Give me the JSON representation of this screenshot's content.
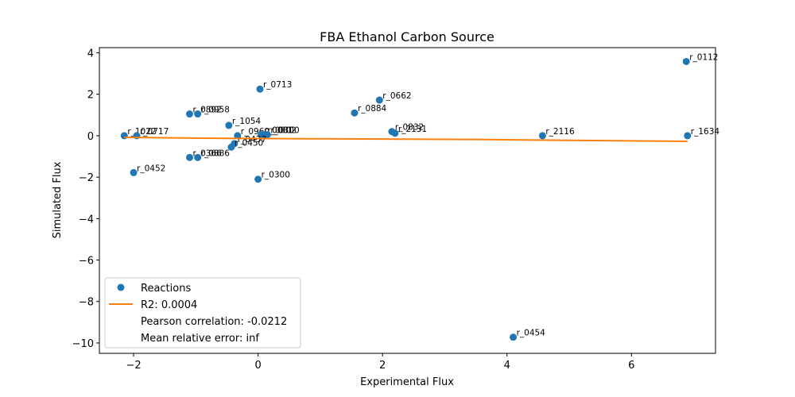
{
  "chart_data": {
    "type": "scatter",
    "title": "FBA Ethanol Carbon Source",
    "xlabel": "Experimental Flux",
    "ylabel": "Simulated Flux",
    "xlim": [
      -2.55,
      7.35
    ],
    "ylim": [
      -10.5,
      4.25
    ],
    "xticks": [
      -2,
      0,
      2,
      4,
      6
    ],
    "yticks": [
      -10,
      -8,
      -6,
      -4,
      -2,
      0,
      2,
      4
    ],
    "grid": false,
    "legend_position": "lower left",
    "colors": {
      "points": "#1f77b4",
      "fit_line": "#ff7f0e"
    },
    "series": [
      {
        "name": "Reactions",
        "points": [
          {
            "x": 6.88,
            "y": 3.58,
            "label": "r_0112"
          },
          {
            "x": 0.03,
            "y": 2.25,
            "label": "r_0713"
          },
          {
            "x": 1.95,
            "y": 1.72,
            "label": "r_0662"
          },
          {
            "x": 1.55,
            "y": 1.1,
            "label": "r_0884"
          },
          {
            "x": -1.1,
            "y": 1.05,
            "label": "r_0892"
          },
          {
            "x": -0.97,
            "y": 1.05,
            "label": "r_0958"
          },
          {
            "x": -0.47,
            "y": 0.5,
            "label": "r_1054"
          },
          {
            "x": -2.15,
            "y": 0.0,
            "label": "r_1022"
          },
          {
            "x": -1.95,
            "y": 0.0,
            "label": "r_0717"
          },
          {
            "x": -0.33,
            "y": 0.0,
            "label": "r_0960"
          },
          {
            "x": 0.05,
            "y": 0.05,
            "label": "r_0001"
          },
          {
            "x": 0.1,
            "y": 0.05,
            "label": "r_0002"
          },
          {
            "x": 0.15,
            "y": 0.05,
            "label": "r_0300"
          },
          {
            "x": 2.15,
            "y": 0.2,
            "label": "r_0832"
          },
          {
            "x": 2.2,
            "y": 0.12,
            "label": "r_2131"
          },
          {
            "x": 4.57,
            "y": 0.0,
            "label": "r_2116"
          },
          {
            "x": 6.9,
            "y": 0.0,
            "label": "r_1634"
          },
          {
            "x": -0.38,
            "y": -0.38,
            "label": "r_0437"
          },
          {
            "x": -0.43,
            "y": -0.55,
            "label": "r_0450"
          },
          {
            "x": -1.1,
            "y": -1.05,
            "label": "r_0366"
          },
          {
            "x": -0.97,
            "y": -1.05,
            "label": "r_0886"
          },
          {
            "x": -2.0,
            "y": -1.78,
            "label": "r_0452"
          },
          {
            "x": 0.0,
            "y": -2.1,
            "label": "r_0300"
          },
          {
            "x": 4.1,
            "y": -9.72,
            "label": "r_0454"
          }
        ]
      }
    ],
    "fit_line": {
      "name": "R2: 0.0004",
      "points": [
        [
          -2.15,
          -0.08
        ],
        [
          -0.5,
          -0.13
        ],
        [
          1.0,
          -0.15
        ],
        [
          3.5,
          -0.18
        ],
        [
          5.0,
          -0.22
        ],
        [
          6.9,
          -0.27
        ]
      ]
    },
    "legend": {
      "entries": [
        {
          "marker": "circle",
          "text": "Reactions"
        },
        {
          "marker": "line",
          "text": "R2: 0.0004"
        },
        {
          "marker": "none",
          "text": "Pearson correlation: -0.0212"
        },
        {
          "marker": "none",
          "text": "Mean relative error: inf"
        }
      ]
    }
  }
}
